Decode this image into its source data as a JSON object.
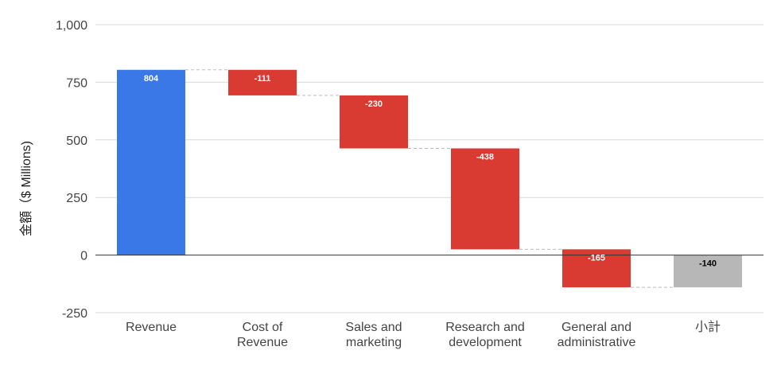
{
  "chart_data": {
    "type": "waterfall",
    "title": "",
    "xlabel": "",
    "ylabel": "金額（$ Millions)",
    "ylim": [
      -250,
      1000
    ],
    "y_ticks": [
      -250,
      0,
      250,
      500,
      750,
      1000
    ],
    "y_tick_labels": [
      "-250",
      "0",
      "250",
      "500",
      "750",
      "1,000"
    ],
    "grid": true,
    "legend": "none",
    "categories": [
      [
        "Revenue"
      ],
      [
        "Cost of",
        "Revenue"
      ],
      [
        "Sales and",
        "marketing"
      ],
      [
        "Research and",
        "development"
      ],
      [
        "General and",
        "administrative"
      ],
      [
        "小計"
      ]
    ],
    "values": [
      804,
      -111,
      -230,
      -438,
      -165,
      -140
    ],
    "bar_kinds": [
      "increase",
      "decrease",
      "decrease",
      "decrease",
      "decrease",
      "total"
    ],
    "data_labels": [
      "804",
      "-111",
      "-230",
      "-438",
      "-165",
      "-140"
    ],
    "colors": {
      "increase": "#3b78e7",
      "decrease": "#d93a32",
      "total": "#b7b7b7",
      "label_on_color": "#ffffff",
      "label_on_total": "#000000",
      "grid": "#d9d9d9",
      "zero_line": "#333333",
      "connector": "#bbbbbb"
    }
  }
}
